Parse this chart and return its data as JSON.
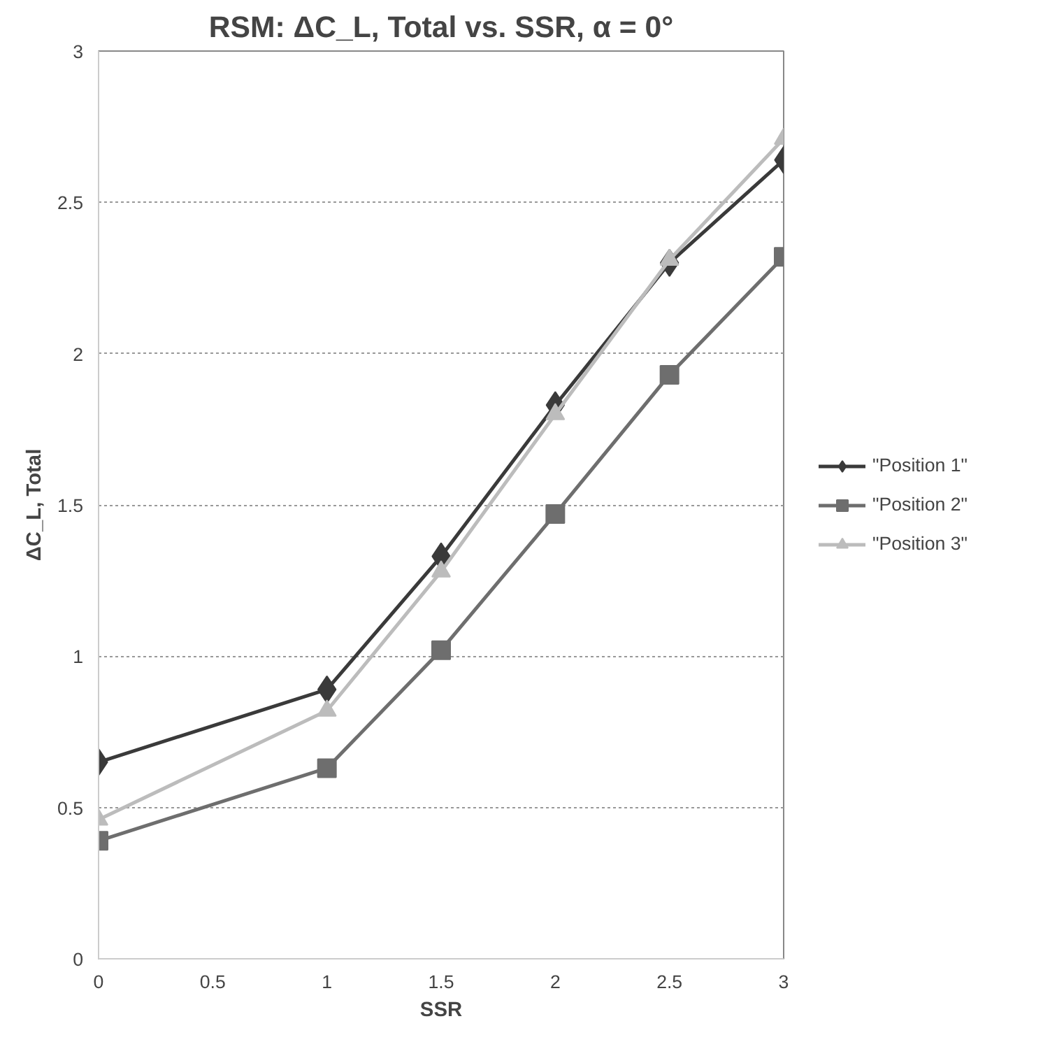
{
  "chart_data": {
    "type": "line",
    "title": "RSM: ΔC_L, Total vs. SSR, α = 0°",
    "xlabel": "SSR",
    "ylabel": "ΔC_L, Total",
    "x": [
      0,
      1,
      1.5,
      2,
      2.5,
      3
    ],
    "series": [
      {
        "name": "\"Position 1\"",
        "color": "#3a3a3a",
        "marker": "diamond",
        "values": [
          0.65,
          0.89,
          1.33,
          1.83,
          2.3,
          2.64
        ]
      },
      {
        "name": "\"Position 2\"",
        "color": "#6e6e6e",
        "marker": "square",
        "values": [
          0.39,
          0.63,
          1.02,
          1.47,
          1.93,
          2.32
        ]
      },
      {
        "name": "\"Position 3\"",
        "color": "#bcbcbc",
        "marker": "triangle",
        "values": [
          0.46,
          0.82,
          1.28,
          1.8,
          2.31,
          2.71
        ]
      }
    ],
    "xlim": [
      0,
      3
    ],
    "xticks": [
      0,
      0.5,
      1,
      1.5,
      2,
      2.5,
      3
    ],
    "ylim": [
      0,
      3
    ],
    "yticks": [
      0,
      0.5,
      1,
      1.5,
      2,
      2.5,
      3
    ],
    "grid": "y",
    "legend": "right"
  }
}
